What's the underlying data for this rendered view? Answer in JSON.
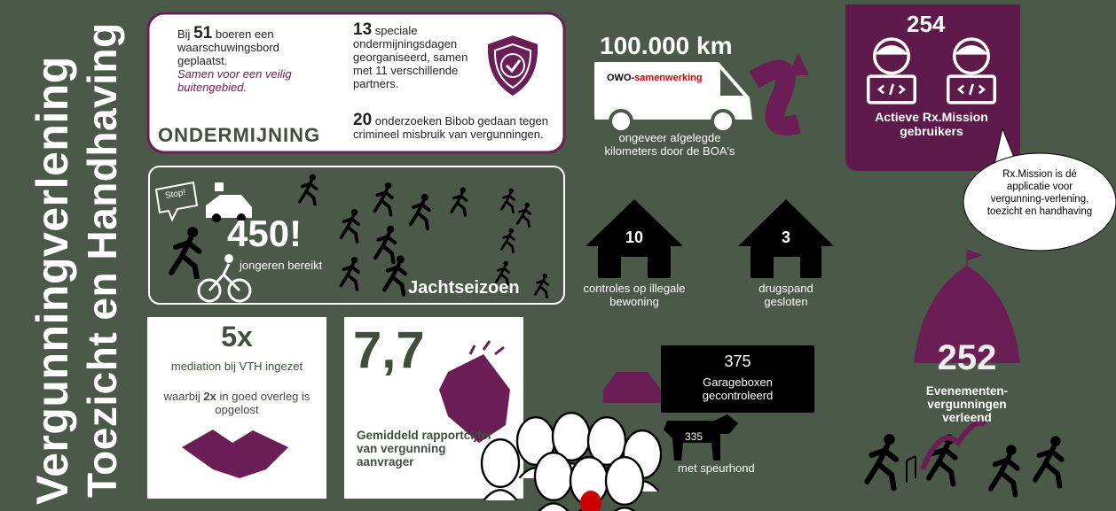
{
  "side_title": {
    "line1": "Vergunningverlening",
    "line2": "Toezicht en Handhaving"
  },
  "ondermijning": {
    "heading": "ONDERMIJNING",
    "item1": {
      "prefix": "Bij",
      "number": 51,
      "text": "boeren een waarschuwingsbord geplaatst.",
      "note": "Samen voor een veilig buitengebied."
    },
    "item2": {
      "number": 13,
      "text": "speciale ondermijningsdagen georganiseerd, samen met 11 verschillende partners."
    },
    "item3": {
      "number": 20,
      "text": "onderzoeken Bibob gedaan tegen crimineel misbruik van vergunningen."
    }
  },
  "boa": {
    "value": "100.000 km",
    "van_label_1": "OWO-",
    "van_label_2": "samenwerking",
    "caption": "ongeveer afgelegde kilometers door de BOA's"
  },
  "rx_mission": {
    "value": 254,
    "caption": "Actieve Rx.Mission gebruikers",
    "bubble": "Rx.Mission is dé applicatie voor vergunning-verlening, toezicht en handhaving"
  },
  "jongeren": {
    "sign": "Stop!",
    "value": "450!",
    "caption": "jongeren bereikt",
    "label": "Jachtseizoen"
  },
  "houses": [
    {
      "value": 10,
      "caption": "controles op illegale bewoning"
    },
    {
      "value": 3,
      "caption": "drugspand gesloten"
    }
  ],
  "mediation": {
    "value": "5x",
    "caption": "mediation bij VTH ingezet",
    "sub_prefix": "waarbij",
    "sub_value": "2x",
    "sub_text": "in goed overleg is opgelost"
  },
  "rapportcijfer": {
    "value": "7,7",
    "caption": "Gemiddeld rapportcijfer van vergunning aanvrager"
  },
  "garageboxen": {
    "value": 375,
    "caption": "Garageboxen gecontroleerd",
    "dog_value": 335,
    "dog_caption": "met speurhond"
  },
  "evenementen": {
    "value": 252,
    "caption": "Evenementen-vergunningen verleend"
  }
}
